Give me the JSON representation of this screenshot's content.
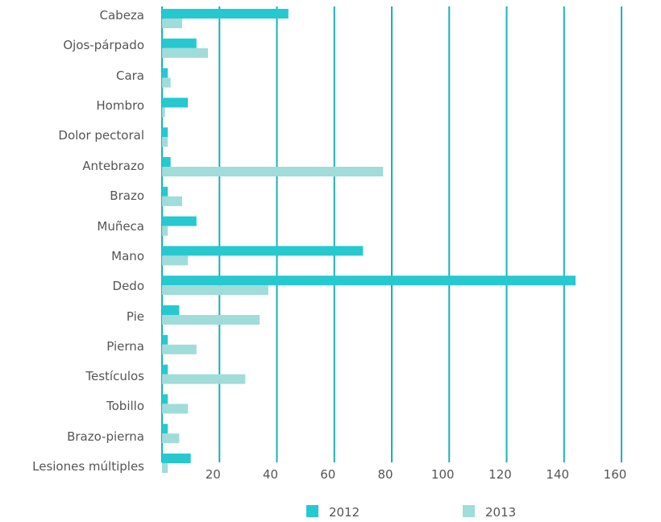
{
  "chart_data": {
    "type": "bar",
    "orientation": "horizontal",
    "categories": [
      "Cabeza",
      "Ojos-párpado",
      "Cara",
      "Hombro",
      "Dolor pectoral",
      "Antebrazo",
      "Brazo",
      "Muñeca",
      "Mano",
      "Dedo",
      "Pie",
      "Pierna",
      "Testículos",
      "Tobillo",
      "Brazo-pierna",
      "Lesiones múltiples"
    ],
    "series": [
      {
        "name": "2012",
        "color": "#26c9cf",
        "values": [
          44,
          12,
          2,
          9,
          2,
          3,
          2,
          12,
          70,
          144,
          6,
          2,
          2,
          2,
          2,
          10
        ]
      },
      {
        "name": "2013",
        "color": "#9fdcda",
        "values": [
          7,
          16,
          3,
          1,
          2,
          77,
          7,
          2,
          9,
          37,
          34,
          12,
          29,
          9,
          6,
          2
        ]
      }
    ],
    "xlim": [
      0,
      160
    ],
    "xticks": [
      20,
      40,
      60,
      80,
      100,
      120,
      140,
      160
    ],
    "grid": true,
    "grid_color": "#17b3b3",
    "legend_position": "bottom"
  }
}
